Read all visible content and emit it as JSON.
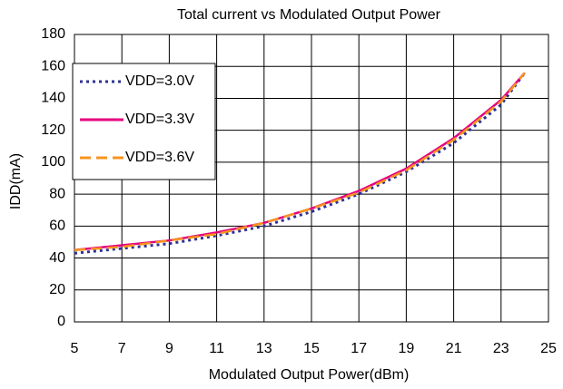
{
  "chart_data": {
    "type": "line",
    "title": "Total current vs Modulated Output Power",
    "x_label": "Modulated Output Power(dBm)",
    "y_label": "IDD(mA)",
    "x": [
      5,
      7,
      9,
      11,
      13,
      15,
      17,
      19,
      21,
      23,
      24
    ],
    "series": [
      {
        "name": "VDD=3.0V",
        "color": "#2e3192",
        "dash": "dotted",
        "values": [
          43,
          46,
          49,
          54,
          60,
          69,
          80,
          94,
          112,
          136,
          156
        ]
      },
      {
        "name": "VDD=3.3V",
        "color": "#e6007e",
        "dash": "solid",
        "values": [
          45,
          48,
          51,
          56,
          62,
          71,
          82,
          96,
          115,
          139,
          156
        ]
      },
      {
        "name": "VDD=3.6V",
        "color": "#f7941d",
        "dash": "dashed",
        "values": [
          45,
          47,
          51,
          55,
          62,
          71,
          81,
          95,
          114,
          138,
          156
        ]
      }
    ],
    "xlim": [
      5,
      25
    ],
    "xticks": [
      5,
      7,
      9,
      11,
      13,
      15,
      17,
      19,
      21,
      23,
      25
    ],
    "ylim": [
      0,
      180
    ],
    "yticks": [
      0,
      20,
      40,
      60,
      80,
      100,
      120,
      140,
      160,
      180
    ],
    "grid": true,
    "legend": "upper-left"
  }
}
